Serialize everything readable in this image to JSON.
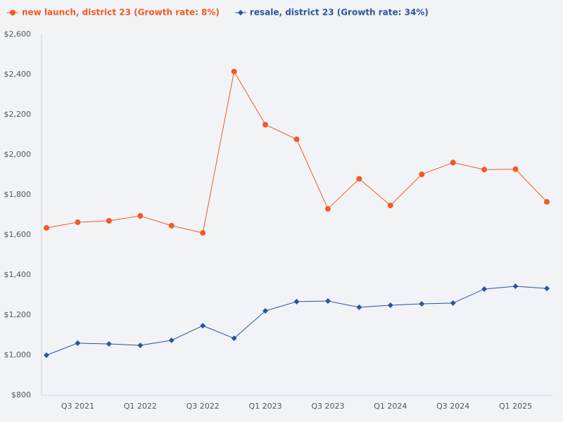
{
  "chart_data": {
    "type": "line",
    "categories": [
      null,
      "Q3 2021",
      null,
      "Q1 2022",
      null,
      "Q3 2022",
      null,
      "Q1 2023",
      null,
      "Q3 2023",
      null,
      "Q1 2024",
      null,
      "Q3 2024",
      null,
      "Q1 2025",
      null
    ],
    "series": [
      {
        "name": "new launch, district 23 (Growth rate: 8%)",
        "color": "#f05a28",
        "marker": "circle",
        "values": [
          1635,
          1663,
          1670,
          1695,
          1646,
          1610,
          2415,
          2150,
          2077,
          1730,
          1880,
          1747,
          1902,
          1961,
          1926,
          1928,
          1765
        ]
      },
      {
        "name": "resale, district 23 (Growth rate: 34%)",
        "color": "#2a5599",
        "marker": "diamond",
        "values": [
          1000,
          1060,
          1056,
          1049,
          1074,
          1147,
          1084,
          1221,
          1267,
          1270,
          1239,
          1249,
          1256,
          1260,
          1330,
          1344,
          1333
        ]
      }
    ],
    "ylim": [
      800,
      2600
    ],
    "yticks": [
      {
        "value": 800,
        "label": "$800"
      },
      {
        "value": 1000,
        "label": "$1,000"
      },
      {
        "value": 1200,
        "label": "$1,200"
      },
      {
        "value": 1400,
        "label": "$1,400"
      },
      {
        "value": 1600,
        "label": "$1,600"
      },
      {
        "value": 1800,
        "label": "$1,800"
      },
      {
        "value": 2000,
        "label": "$2,000"
      },
      {
        "value": 2200,
        "label": "$2,200"
      },
      {
        "value": 2400,
        "label": "$2,400"
      },
      {
        "value": 2600,
        "label": "$2,600"
      }
    ],
    "grid": false,
    "legend": "top"
  }
}
